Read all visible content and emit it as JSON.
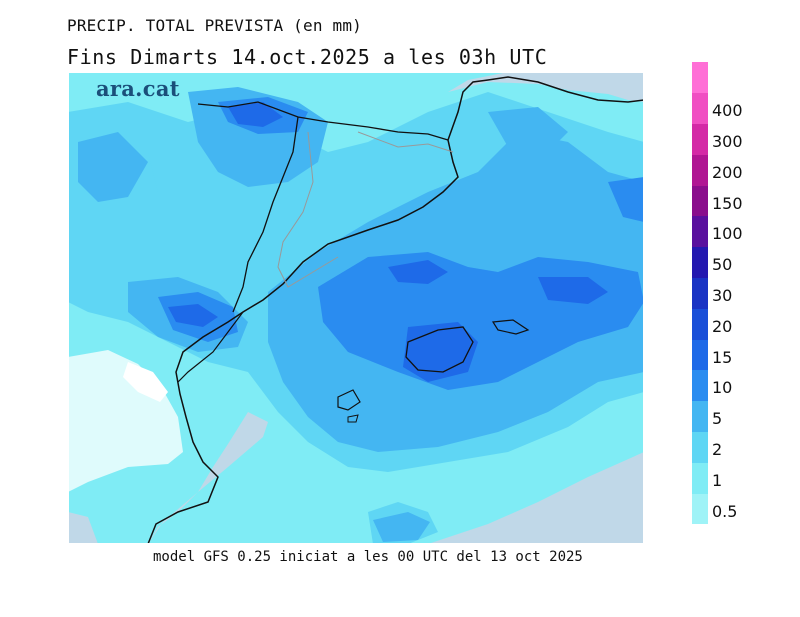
{
  "header": {
    "title_line1": "PRECIP. TOTAL PREVISTA (en mm)",
    "title_line2": "Fins Dimarts   14.oct.2025 a les 03h UTC"
  },
  "brand": {
    "logo_text": "ara.cat"
  },
  "footer": {
    "model_info": "model GFS 0.25 iniciat a les 00 UTC del 13 oct 2025"
  },
  "legend": {
    "levels": [
      {
        "label": "0.5",
        "color": "#9ff3f7"
      },
      {
        "label": "1",
        "color": "#7fecf5"
      },
      {
        "label": "2",
        "color": "#5fd6f4"
      },
      {
        "label": "5",
        "color": "#44b6f2"
      },
      {
        "label": "10",
        "color": "#2a8cf0"
      },
      {
        "label": "15",
        "color": "#1e6ae8"
      },
      {
        "label": "20",
        "color": "#1a4fd8"
      },
      {
        "label": "30",
        "color": "#1a34c4"
      },
      {
        "label": "50",
        "color": "#2418b0"
      },
      {
        "label": "100",
        "color": "#5a109e"
      },
      {
        "label": "150",
        "color": "#8a0e8c"
      },
      {
        "label": "200",
        "color": "#b01693"
      },
      {
        "label": "300",
        "color": "#d42aa6"
      },
      {
        "label": "400",
        "color": "#f04fc2"
      },
      {
        "label": "",
        "color": "#ff6fd6"
      }
    ]
  },
  "map": {
    "sea_color": "#c0d8e8",
    "land_no_rain": "#ffffff"
  }
}
